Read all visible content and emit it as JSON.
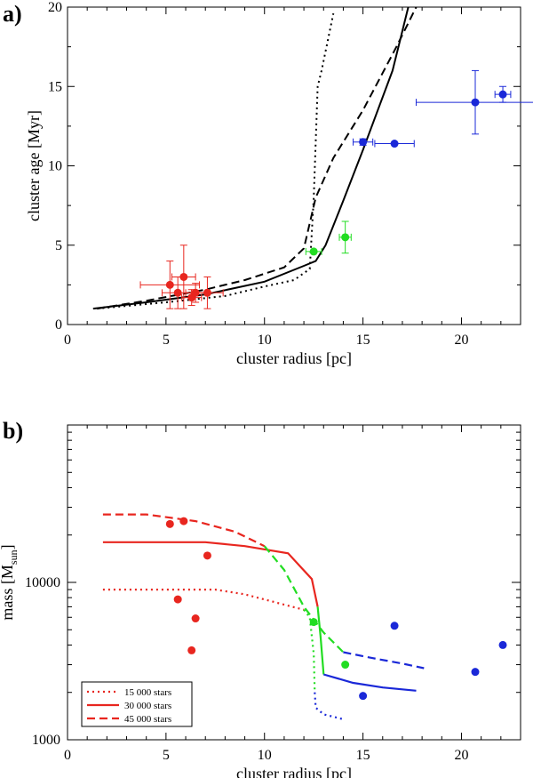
{
  "figure": {
    "panel_a_label": "a)",
    "panel_b_label": "b)"
  },
  "chart_data": [
    {
      "type": "scatter",
      "panel": "a)",
      "xlabel": "cluster radius [pc]",
      "ylabel": "cluster age [Myr]",
      "xlim": [
        0,
        23
      ],
      "ylim": [
        0,
        20
      ],
      "xticks": [
        0,
        5,
        10,
        15,
        20
      ],
      "yticks": [
        0,
        5,
        10,
        15,
        20
      ],
      "series": [
        {
          "name": "red clusters",
          "kind": "points",
          "color": "#e8261f",
          "points": [
            {
              "x": 5.2,
              "y": 2.5,
              "xerr": 1.5,
              "yerr": 1.5
            },
            {
              "x": 5.6,
              "y": 2.0,
              "xerr": 0.8,
              "yerr": 1.0
            },
            {
              "x": 5.9,
              "y": 3.0,
              "xerr": 0.6,
              "yerr": 2.0
            },
            {
              "x": 6.3,
              "y": 1.7,
              "xerr": 0.5,
              "yerr": 0.5
            },
            {
              "x": 6.5,
              "y": 2.0,
              "xerr": 0.5,
              "yerr": 0.6
            },
            {
              "x": 7.1,
              "y": 2.0,
              "xerr": 0.8,
              "yerr": 1.0
            }
          ]
        },
        {
          "name": "green clusters",
          "kind": "points",
          "color": "#22dd22",
          "points": [
            {
              "x": 12.5,
              "y": 4.6,
              "xerr": 0.4,
              "yerr": 0.0
            },
            {
              "x": 14.1,
              "y": 5.5,
              "xerr": 0.3,
              "yerr": 1.0
            }
          ]
        },
        {
          "name": "blue clusters",
          "kind": "points",
          "color": "#1a28d8",
          "points": [
            {
              "x": 15.0,
              "y": 11.5,
              "xerr": 0.5,
              "yerr": 0.2
            },
            {
              "x": 16.6,
              "y": 11.4,
              "xerr": 1.0,
              "yerr": 0.0
            },
            {
              "x": 20.7,
              "y": 14.0,
              "xerr": 3.0,
              "yerr": 2.0
            },
            {
              "x": 22.1,
              "y": 14.5,
              "xerr": 0.4,
              "yerr": 0.5
            }
          ]
        },
        {
          "name": "model dotted",
          "kind": "line",
          "style": "dotted",
          "color": "#000000",
          "x": [
            1.5,
            5.0,
            8.0,
            10.0,
            11.5,
            12.3,
            12.5,
            12.7,
            12.9,
            13.5
          ],
          "y": [
            1.0,
            1.4,
            1.8,
            2.4,
            2.8,
            3.5,
            8.0,
            15.0,
            16.0,
            19.6
          ]
        },
        {
          "name": "model solid",
          "kind": "line",
          "style": "solid",
          "color": "#000000",
          "x": [
            1.3,
            4.0,
            7.0,
            10.0,
            12.0,
            12.6,
            13.1,
            14.0,
            15.0,
            16.5,
            17.3
          ],
          "y": [
            1.0,
            1.4,
            1.9,
            2.7,
            3.7,
            4.0,
            5.0,
            7.8,
            11.0,
            16.0,
            20.0
          ]
        },
        {
          "name": "model dashed",
          "kind": "line",
          "style": "dashed",
          "color": "#000000",
          "x": [
            1.5,
            4.0,
            7.0,
            9.0,
            11.0,
            12.0,
            12.6,
            13.5,
            15.0,
            16.7,
            17.7
          ],
          "y": [
            1.0,
            1.5,
            2.2,
            2.8,
            3.6,
            4.8,
            8.0,
            10.5,
            13.5,
            17.5,
            20.0
          ]
        }
      ]
    },
    {
      "type": "scatter",
      "panel": "b)",
      "xlabel": "cluster radius [pc]",
      "ylabel": "mass [M",
      "ylabel_sub": "sun",
      "ylabel_close": "]",
      "yscale": "log",
      "xlim": [
        0,
        23
      ],
      "ylim": [
        1000,
        100000
      ],
      "xticks": [
        0,
        5,
        10,
        15,
        20
      ],
      "yticks": [
        1000,
        10000
      ],
      "ytick_labels": [
        "1000",
        "10000"
      ],
      "series": [
        {
          "name": "red clusters",
          "kind": "points",
          "color": "#e8261f",
          "points": [
            {
              "x": 5.2,
              "y": 23500
            },
            {
              "x": 5.9,
              "y": 24500
            },
            {
              "x": 7.1,
              "y": 14800
            },
            {
              "x": 5.6,
              "y": 7800
            },
            {
              "x": 6.5,
              "y": 5900
            },
            {
              "x": 6.3,
              "y": 3700
            }
          ]
        },
        {
          "name": "green clusters",
          "kind": "points",
          "color": "#22dd22",
          "points": [
            {
              "x": 12.5,
              "y": 5600
            },
            {
              "x": 14.1,
              "y": 3000
            }
          ]
        },
        {
          "name": "blue clusters",
          "kind": "points",
          "color": "#1a28d8",
          "points": [
            {
              "x": 16.6,
              "y": 5300
            },
            {
              "x": 22.1,
              "y": 4000
            },
            {
              "x": 20.7,
              "y": 2700
            },
            {
              "x": 15.0,
              "y": 1900
            }
          ]
        },
        {
          "name": "15 000 stars",
          "kind": "line",
          "style": "dotted",
          "legend": true,
          "segments": [
            {
              "color": "#e8261f",
              "x": [
                1.8,
                4.0,
                7.5,
                9.0,
                10.5,
                12.0
              ],
              "y": [
                9000,
                9000,
                9000,
                8400,
                7500,
                6700
              ]
            },
            {
              "color": "#22dd22",
              "x": [
                12.0,
                12.3,
                12.5,
                12.55
              ],
              "y": [
                6700,
                6000,
                3500,
                2000
              ]
            },
            {
              "color": "#1a28d8",
              "x": [
                12.55,
                12.6,
                13.0,
                14.0
              ],
              "y": [
                2000,
                1600,
                1450,
                1350
              ]
            }
          ]
        },
        {
          "name": "30 000 stars",
          "kind": "line",
          "style": "solid",
          "legend": true,
          "segments": [
            {
              "color": "#e8261f",
              "x": [
                1.8,
                4.0,
                7.0,
                9.0,
                11.2,
                12.4,
                12.7
              ],
              "y": [
                18000,
                18000,
                18000,
                17000,
                15300,
                10500,
                7000
              ]
            },
            {
              "color": "#22dd22",
              "x": [
                12.7,
                12.85,
                13.0
              ],
              "y": [
                7000,
                4500,
                2600
              ]
            },
            {
              "color": "#1a28d8",
              "x": [
                13.0,
                14.5,
                16.0,
                17.7
              ],
              "y": [
                2600,
                2300,
                2150,
                2050
              ]
            }
          ]
        },
        {
          "name": "45 000 stars",
          "kind": "line",
          "style": "dashed",
          "legend": true,
          "segments": [
            {
              "color": "#e8261f",
              "x": [
                1.8,
                4.0,
                6.5,
                8.5,
                10.0
              ],
              "y": [
                27000,
                27000,
                24500,
                21000,
                17000
              ]
            },
            {
              "color": "#22dd22",
              "x": [
                10.0,
                11.0,
                12.0,
                13.0,
                14.0
              ],
              "y": [
                17000,
                12000,
                7000,
                4800,
                3600
              ]
            },
            {
              "color": "#1a28d8",
              "x": [
                14.0,
                15.5,
                17.0,
                18.1
              ],
              "y": [
                3600,
                3300,
                3050,
                2850
              ]
            }
          ]
        }
      ],
      "legend": {
        "placement": "bottom-left",
        "entries": [
          {
            "label": "15 000 stars",
            "style": "dotted",
            "color": "#e8261f"
          },
          {
            "label": "30 000 stars",
            "style": "solid",
            "color": "#e8261f"
          },
          {
            "label": "45 000 stars",
            "style": "dashed",
            "color": "#e8261f"
          }
        ]
      }
    }
  ]
}
